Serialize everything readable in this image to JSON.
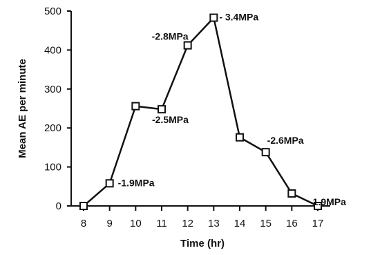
{
  "chart_data": {
    "type": "line",
    "title": "",
    "xlabel": "Time (hr)",
    "ylabel": "Mean AE per minute",
    "xlim": [
      8,
      17
    ],
    "ylim": [
      0,
      500
    ],
    "x_ticks": [
      "8",
      "9",
      "10",
      "11",
      "12",
      "13",
      "14",
      "15",
      "16",
      "17"
    ],
    "y_ticks": [
      "0",
      "100",
      "200",
      "300",
      "400",
      "500"
    ],
    "grid": false,
    "marker": "open-square",
    "colors": {
      "line": "#111111",
      "marker_fill": "#ffffff",
      "background": "#ffffff"
    },
    "series": [
      {
        "x": [
          8,
          9,
          10,
          11,
          12,
          13,
          14,
          15,
          16,
          17
        ],
        "values": [
          0,
          58,
          256,
          248,
          412,
          483,
          176,
          138,
          32,
          0
        ]
      }
    ],
    "annotations": [
      {
        "text": "-1.9MPa",
        "x": 9,
        "y": 58
      },
      {
        "text": "-2.8MPa",
        "x": 12,
        "y": 412
      },
      {
        "text": "-2.5MPa",
        "x": 11,
        "y": 248
      },
      {
        "text": "- 3.4MPa",
        "x": 13,
        "y": 483
      },
      {
        "text": "-2.6MPa",
        "x": 15,
        "y": 138
      },
      {
        "text": "-1.9MPa",
        "x": 17,
        "y": 0
      }
    ]
  }
}
